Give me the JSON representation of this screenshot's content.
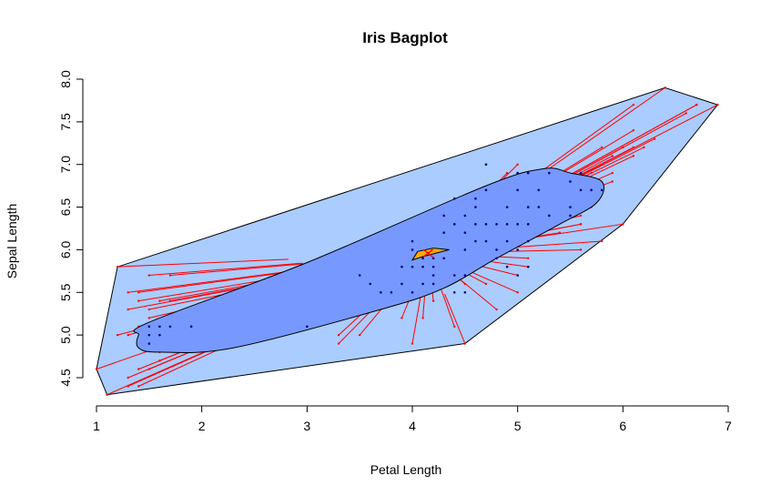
{
  "chart_data": {
    "type": "scatter",
    "subtype": "bagplot",
    "title": "Iris Bagplot",
    "xlabel": "Petal Length",
    "ylabel": "Sepal Length",
    "xlim": [
      1,
      7
    ],
    "ylim": [
      4.3,
      8.0
    ],
    "x_ticks": [
      "1",
      "2",
      "3",
      "4",
      "5",
      "6",
      "7"
    ],
    "y_ticks": [
      "4.5",
      "5.0",
      "5.5",
      "6.0",
      "6.5",
      "7.0",
      "7.5",
      "8.0"
    ],
    "grid": false,
    "colors": {
      "loop": "#aaccff",
      "bag": "#7799ff",
      "center_region": "#ffaa00",
      "center_point": "#ff0000",
      "whiskers": "#ff0000",
      "inner_points": "#000080",
      "outline": "#000000"
    },
    "loop_hull": [
      [
        1.0,
        4.6
      ],
      [
        1.2,
        5.8
      ],
      [
        6.4,
        7.9
      ],
      [
        6.9,
        7.7
      ],
      [
        6.0,
        6.3
      ],
      [
        4.5,
        4.9
      ],
      [
        1.1,
        4.3
      ]
    ],
    "bag_polygon": [
      [
        1.4,
        4.85
      ],
      [
        1.4,
        5.0
      ],
      [
        1.5,
        5.15
      ],
      [
        3.0,
        5.85
      ],
      [
        4.7,
        6.75
      ],
      [
        5.25,
        6.95
      ],
      [
        5.5,
        6.9
      ],
      [
        5.8,
        6.8
      ],
      [
        5.75,
        6.55
      ],
      [
        5.4,
        6.3
      ],
      [
        4.8,
        5.9
      ],
      [
        4.3,
        5.55
      ],
      [
        3.7,
        5.3
      ],
      [
        2.3,
        4.85
      ],
      [
        1.6,
        4.8
      ]
    ],
    "center_region": [
      [
        4.0,
        5.88
      ],
      [
        4.05,
        5.98
      ],
      [
        4.2,
        6.02
      ],
      [
        4.35,
        6.0
      ],
      [
        4.1,
        5.92
      ]
    ],
    "center": [
      4.15,
      5.96
    ],
    "inner_points": [
      [
        1.5,
        5.1
      ],
      [
        1.6,
        5.1
      ],
      [
        1.7,
        5.1
      ],
      [
        1.9,
        5.1
      ],
      [
        1.5,
        5.0
      ],
      [
        1.6,
        5.0
      ],
      [
        1.5,
        4.9
      ],
      [
        3.0,
        5.1
      ],
      [
        3.5,
        5.7
      ],
      [
        3.6,
        5.6
      ],
      [
        3.7,
        5.5
      ],
      [
        3.8,
        5.5
      ],
      [
        3.9,
        5.6
      ],
      [
        4.0,
        5.5
      ],
      [
        4.1,
        5.6
      ],
      [
        4.2,
        5.7
      ],
      [
        3.9,
        5.8
      ],
      [
        4.0,
        5.8
      ],
      [
        4.1,
        5.8
      ],
      [
        4.0,
        6.1
      ],
      [
        4.0,
        6.0
      ],
      [
        4.1,
        5.9
      ],
      [
        4.2,
        5.9
      ],
      [
        4.4,
        5.5
      ],
      [
        4.5,
        5.7
      ],
      [
        4.2,
        5.6
      ],
      [
        4.3,
        5.9
      ],
      [
        4.4,
        5.7
      ],
      [
        4.5,
        6.0
      ],
      [
        4.5,
        6.2
      ],
      [
        4.3,
        6.2
      ],
      [
        4.3,
        6.4
      ],
      [
        4.4,
        6.3
      ],
      [
        4.4,
        6.6
      ],
      [
        4.5,
        6.4
      ],
      [
        4.6,
        6.5
      ],
      [
        4.7,
        6.7
      ],
      [
        4.6,
        6.3
      ],
      [
        4.7,
        6.3
      ],
      [
        4.7,
        6.1
      ],
      [
        4.6,
        6.1
      ],
      [
        4.8,
        6.0
      ],
      [
        4.9,
        6.1
      ],
      [
        4.8,
        6.3
      ],
      [
        4.9,
        6.5
      ],
      [
        5.0,
        6.7
      ],
      [
        5.0,
        6.3
      ],
      [
        5.1,
        6.3
      ],
      [
        5.0,
        6.0
      ],
      [
        5.1,
        6.5
      ],
      [
        5.2,
        6.7
      ],
      [
        5.1,
        6.9
      ],
      [
        5.3,
        6.4
      ],
      [
        5.5,
        6.5
      ],
      [
        5.6,
        6.7
      ],
      [
        5.7,
        6.7
      ],
      [
        5.5,
        6.8
      ],
      [
        5.6,
        6.9
      ],
      [
        5.8,
        6.7
      ],
      [
        5.0,
        5.7
      ],
      [
        4.8,
        5.9
      ],
      [
        4.9,
        6.3
      ],
      [
        5.2,
        6.5
      ],
      [
        5.3,
        6.9
      ],
      [
        4.5,
        5.5
      ],
      [
        4.9,
        5.8
      ],
      [
        5.1,
        6.1
      ],
      [
        5.5,
        6.4
      ],
      [
        4.7,
        7.0
      ],
      [
        5.1,
        5.8
      ],
      [
        4.6,
        6.6
      ],
      [
        5.0,
        6.9
      ],
      [
        4.2,
        5.8
      ]
    ],
    "whisker_points": [
      [
        1.0,
        4.6
      ],
      [
        1.1,
        4.3
      ],
      [
        1.2,
        5.8
      ],
      [
        1.3,
        4.4
      ],
      [
        1.3,
        4.5
      ],
      [
        1.3,
        5.0
      ],
      [
        1.3,
        5.5
      ],
      [
        1.4,
        5.4
      ],
      [
        1.4,
        4.6
      ],
      [
        1.4,
        5.1
      ],
      [
        1.5,
        5.2
      ],
      [
        1.5,
        5.7
      ],
      [
        1.5,
        4.6
      ],
      [
        1.6,
        5.4
      ],
      [
        1.7,
        5.7
      ],
      [
        1.6,
        4.8
      ],
      [
        1.5,
        5.3
      ],
      [
        1.9,
        4.8
      ],
      [
        1.7,
        5.4
      ],
      [
        1.4,
        4.4
      ],
      [
        1.4,
        5.5
      ],
      [
        1.2,
        5.0
      ],
      [
        1.3,
        5.3
      ],
      [
        1.6,
        4.7
      ],
      [
        3.3,
        4.9
      ],
      [
        3.3,
        5.0
      ],
      [
        3.5,
        5.0
      ],
      [
        3.9,
        5.2
      ],
      [
        4.0,
        4.9
      ],
      [
        4.5,
        4.9
      ],
      [
        4.1,
        5.2
      ],
      [
        4.5,
        5.6
      ],
      [
        4.7,
        5.6
      ],
      [
        4.8,
        5.3
      ],
      [
        5.0,
        5.7
      ],
      [
        5.1,
        5.8
      ],
      [
        5.0,
        5.5
      ],
      [
        4.2,
        5.4
      ],
      [
        4.4,
        5.1
      ],
      [
        5.6,
        6.0
      ],
      [
        5.8,
        6.1
      ],
      [
        5.6,
        6.3
      ],
      [
        5.4,
        6.2
      ],
      [
        5.6,
        6.4
      ],
      [
        5.7,
        6.5
      ],
      [
        5.6,
        6.8
      ],
      [
        6.0,
        6.3
      ],
      [
        6.1,
        7.4
      ],
      [
        6.1,
        7.7
      ],
      [
        6.1,
        7.2
      ],
      [
        6.3,
        7.3
      ],
      [
        6.4,
        7.9
      ],
      [
        6.6,
        7.6
      ],
      [
        6.7,
        7.7
      ],
      [
        6.9,
        7.7
      ],
      [
        5.9,
        6.8
      ],
      [
        6.0,
        7.2
      ],
      [
        6.7,
        7.7
      ],
      [
        5.9,
        7.1
      ],
      [
        5.8,
        7.0
      ],
      [
        5.7,
        6.9
      ],
      [
        5.9,
        6.9
      ],
      [
        6.2,
        7.2
      ],
      [
        5.8,
        7.2
      ],
      [
        6.1,
        7.1
      ],
      [
        5.6,
        6.3
      ],
      [
        5.1,
        5.9
      ],
      [
        5.0,
        7.0
      ],
      [
        4.9,
        6.9
      ]
    ]
  }
}
